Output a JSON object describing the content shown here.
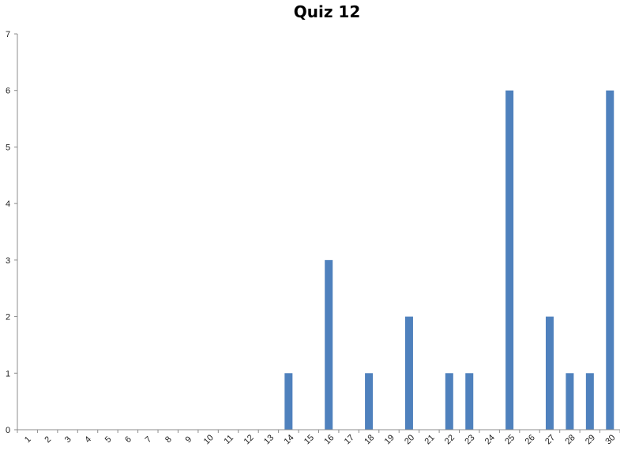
{
  "chart_data": {
    "type": "bar",
    "title": "Quiz 12",
    "xlabel": "",
    "ylabel": "",
    "ylim": [
      0,
      7
    ],
    "yticks": [
      0,
      1,
      2,
      3,
      4,
      5,
      6,
      7
    ],
    "grid": false,
    "legend": "none",
    "categories": [
      "1",
      "2",
      "3",
      "4",
      "5",
      "6",
      "7",
      "8",
      "9",
      "10",
      "11",
      "12",
      "13",
      "14",
      "15",
      "16",
      "17",
      "18",
      "19",
      "20",
      "21",
      "22",
      "23",
      "24",
      "25",
      "26",
      "27",
      "28",
      "29",
      "30"
    ],
    "values": [
      0,
      0,
      0,
      0,
      0,
      0,
      0,
      0,
      0,
      0,
      0,
      0,
      0,
      1,
      0,
      3,
      0,
      1,
      0,
      2,
      0,
      1,
      1,
      0,
      6,
      0,
      2,
      1,
      1,
      6
    ],
    "colors": {
      "bar": "#4f81bd",
      "axis": "#8c8c8c"
    }
  }
}
